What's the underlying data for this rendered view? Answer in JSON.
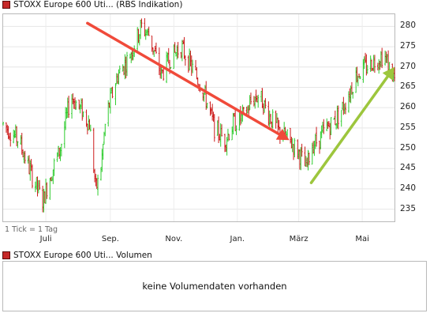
{
  "header_price": {
    "title": "STOXX Europe 600 Uti...",
    "source": "(RBS Indikation)",
    "marker_color": "#c62828"
  },
  "header_volume": {
    "title": "STOXX Europe 600 Uti...",
    "suffix": "Volumen",
    "marker_color": "#c62828"
  },
  "tick_note": "1 Tick = 1 Tag",
  "volume_message": "keine Volumendaten vorhanden",
  "chart_data": {
    "type": "ohlc",
    "ylim": [
      232,
      283
    ],
    "y_ticks": [
      235,
      240,
      245,
      250,
      255,
      260,
      265,
      270,
      275,
      280
    ],
    "x_ticks": [
      "Juli",
      "Sep.",
      "Nov.",
      "Jan.",
      "März",
      "Mai"
    ],
    "up_color": "#2ecc2e",
    "down_color": "#cc1b1b",
    "annotations": [
      {
        "type": "arrow",
        "color": "#f04a3a",
        "from": [
          "2010-08-10",
          280.8
        ],
        "to": [
          "2011-02-20",
          252.0
        ]
      },
      {
        "type": "arrow",
        "color": "#9dc63d",
        "from": [
          "2011-03-13",
          241.5
        ],
        "to": [
          "2011-06-01",
          270.0
        ]
      }
    ],
    "series": [
      {
        "date_from": "2010-05-21",
        "date_to": "2011-06-01",
        "close_path": [
          [
            "2010-05-21",
            256
          ],
          [
            "2010-06-05",
            252
          ],
          [
            "2010-06-18",
            243
          ],
          [
            "2010-06-28",
            237
          ],
          [
            "2010-07-05",
            243
          ],
          [
            "2010-07-15",
            250
          ],
          [
            "2010-07-25",
            263
          ],
          [
            "2010-08-05",
            259
          ],
          [
            "2010-08-12",
            256
          ],
          [
            "2010-08-18",
            240
          ],
          [
            "2010-08-22",
            243
          ],
          [
            "2010-08-28",
            258
          ],
          [
            "2010-09-08",
            268
          ],
          [
            "2010-09-18",
            272
          ],
          [
            "2010-10-01",
            280
          ],
          [
            "2010-10-08",
            278
          ],
          [
            "2010-10-20",
            268
          ],
          [
            "2010-10-28",
            272
          ],
          [
            "2010-11-08",
            275
          ],
          [
            "2010-11-18",
            270
          ],
          [
            "2010-11-28",
            265
          ],
          [
            "2010-12-02",
            262
          ],
          [
            "2010-12-10",
            255
          ],
          [
            "2010-12-20",
            252
          ],
          [
            "2010-12-28",
            256
          ],
          [
            "2011-01-08",
            258
          ],
          [
            "2011-01-15",
            262
          ],
          [
            "2011-01-22",
            263
          ],
          [
            "2011-02-01",
            258
          ],
          [
            "2011-02-10",
            254
          ],
          [
            "2011-02-20",
            252
          ],
          [
            "2011-03-01",
            249
          ],
          [
            "2011-03-08",
            245
          ],
          [
            "2011-03-14",
            251
          ],
          [
            "2011-03-20",
            252
          ],
          [
            "2011-03-28",
            255
          ],
          [
            "2011-04-08",
            258
          ],
          [
            "2011-04-16",
            262
          ],
          [
            "2011-04-25",
            268
          ],
          [
            "2011-05-05",
            270
          ],
          [
            "2011-05-15",
            272
          ],
          [
            "2011-05-22",
            273
          ],
          [
            "2011-06-01",
            267
          ]
        ],
        "volatility": 2.4
      }
    ]
  }
}
